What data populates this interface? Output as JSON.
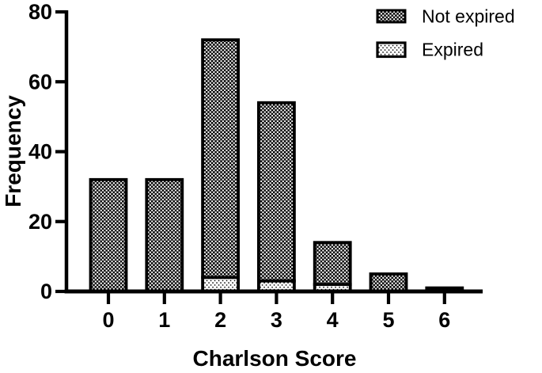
{
  "chart_data": {
    "type": "bar",
    "stacked": true,
    "title": "",
    "xlabel": "Charlson Score",
    "ylabel": "Frequency",
    "categories": [
      "0",
      "1",
      "2",
      "3",
      "4",
      "5",
      "6"
    ],
    "series": [
      {
        "name": "Not expired",
        "pattern": "black-white-checkerboard",
        "stack_position": "top",
        "values": [
          32,
          32,
          68,
          51,
          12,
          5,
          1
        ]
      },
      {
        "name": "Expired",
        "pattern": "white-with-black-dots",
        "stack_position": "bottom",
        "values": [
          0,
          0,
          4,
          3,
          2,
          0,
          0
        ]
      }
    ],
    "stack_totals": [
      32,
      32,
      72,
      54,
      14,
      5,
      1
    ],
    "y_axis": {
      "ticks": [
        0,
        20,
        40,
        60,
        80
      ],
      "lim": [
        0,
        80
      ]
    },
    "x_axis": {
      "ticks": [
        "0",
        "1",
        "2",
        "3",
        "4",
        "5",
        "6"
      ]
    },
    "legend": {
      "position": "top-right",
      "entries": [
        "Not expired",
        "Expired"
      ]
    },
    "grid": false,
    "colors": {
      "foreground": "#000000",
      "background": "#ffffff"
    }
  }
}
